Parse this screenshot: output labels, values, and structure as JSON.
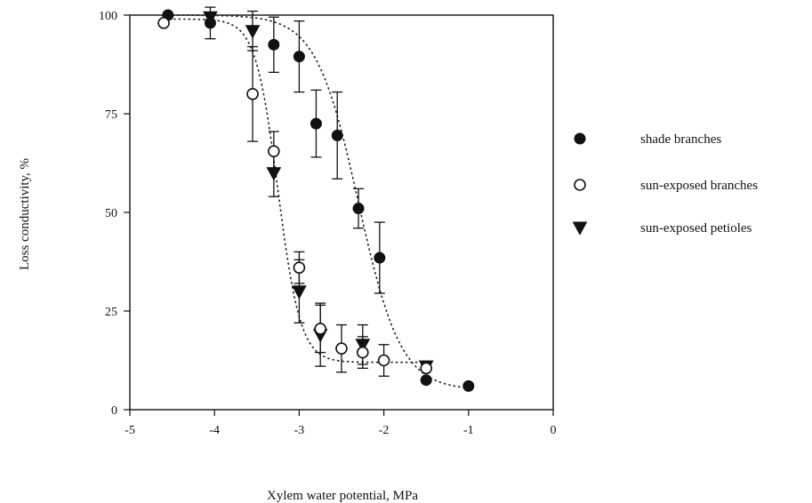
{
  "chart_data": {
    "type": "scatter",
    "title": "",
    "xlabel": "Xylem water potential, MPa",
    "ylabel": "Loss conductivity, %",
    "xlim": [
      -5,
      0
    ],
    "ylim": [
      0,
      100
    ],
    "x_ticks": [
      "-5",
      "-4",
      "-3",
      "-2",
      "-1",
      "0"
    ],
    "y_ticks": [
      "0",
      "25",
      "50",
      "75",
      "100"
    ],
    "grid": false,
    "legend_position": "right",
    "series": [
      {
        "name": "shade branches",
        "marker": "filled-circle",
        "points": [
          {
            "x": -4.55,
            "y": 100
          },
          {
            "x": -4.05,
            "y": 98,
            "err": 4
          },
          {
            "x": -3.3,
            "y": 92.5,
            "err": 7
          },
          {
            "x": -3.0,
            "y": 89.5,
            "err": 9
          },
          {
            "x": -2.8,
            "y": 72.5,
            "err": 8.5
          },
          {
            "x": -2.55,
            "y": 69.5,
            "err": 11
          },
          {
            "x": -2.3,
            "y": 51,
            "err": 5
          },
          {
            "x": -2.05,
            "y": 38.5,
            "err": 9
          },
          {
            "x": -1.5,
            "y": 7.5
          },
          {
            "x": -1.0,
            "y": 6
          }
        ]
      },
      {
        "name": "sun-exposed branches",
        "marker": "open-circle",
        "points": [
          {
            "x": -4.6,
            "y": 98
          },
          {
            "x": -3.55,
            "y": 80,
            "err": 12
          },
          {
            "x": -3.3,
            "y": 65.5,
            "err": 5
          },
          {
            "x": -3.0,
            "y": 36,
            "err": 4
          },
          {
            "x": -2.75,
            "y": 20.5,
            "err": 6
          },
          {
            "x": -2.5,
            "y": 15.5,
            "err": 6
          },
          {
            "x": -2.25,
            "y": 14.5,
            "err": 4
          },
          {
            "x": -2.0,
            "y": 12.5,
            "err": 4
          },
          {
            "x": -1.5,
            "y": 10.5
          }
        ]
      },
      {
        "name": "sun-exposed petioles",
        "marker": "filled-triangle-down",
        "points": [
          {
            "x": -4.05,
            "y": 99.5
          },
          {
            "x": -3.55,
            "y": 96,
            "err": 5
          },
          {
            "x": -3.3,
            "y": 60,
            "err": 6
          },
          {
            "x": -3.0,
            "y": 30,
            "err": 8
          },
          {
            "x": -2.75,
            "y": 19,
            "err": 8
          },
          {
            "x": -2.25,
            "y": 16.5,
            "err": 5
          },
          {
            "x": -1.5,
            "y": 11
          }
        ]
      }
    ],
    "fit_curves": [
      {
        "midpoint": -2.3,
        "steepness": 4.0,
        "top": 100,
        "bottom": 5,
        "from": -4.5,
        "to": -1.0
      },
      {
        "midpoint": -3.25,
        "steepness": 7.5,
        "top": 99,
        "bottom": 12,
        "from": -4.6,
        "to": -1.5
      }
    ]
  }
}
